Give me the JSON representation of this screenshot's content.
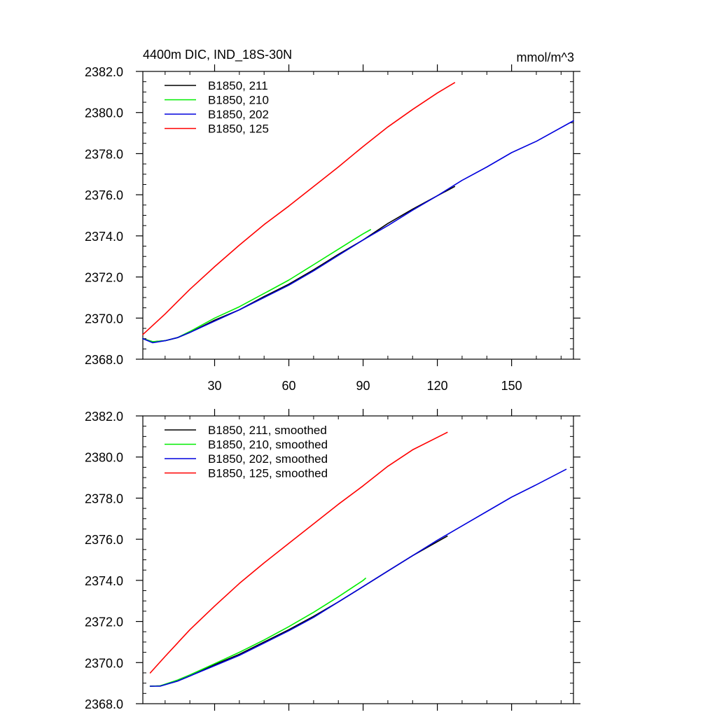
{
  "figure": {
    "title_left": "4400m DIC, IND_18S-30N",
    "title_right": "mmol/m^3"
  },
  "chart_data": [
    {
      "type": "line",
      "title": "4400m DIC, IND_18S-30N",
      "units": "mmol/m^3",
      "xlabel": "",
      "ylabel": "",
      "xlim": [
        1,
        175
      ],
      "ylim": [
        2368.0,
        2382.0
      ],
      "xticks": [
        30,
        60,
        90,
        120,
        150
      ],
      "xtick_labels": [
        "30",
        "60",
        "90",
        "120",
        "150"
      ],
      "yticks": [
        2368.0,
        2370.0,
        2372.0,
        2374.0,
        2376.0,
        2378.0,
        2380.0,
        2382.0
      ],
      "ytick_labels": [
        "2368.0",
        "2370.0",
        "2372.0",
        "2374.0",
        "2376.0",
        "2378.0",
        "2380.0",
        "2382.0"
      ],
      "grid": false,
      "legend": "top-left",
      "series": [
        {
          "name": "B1850, 211",
          "color": "#000000",
          "x": [
            1,
            5,
            10,
            15,
            20,
            30,
            40,
            50,
            60,
            70,
            80,
            90,
            100,
            110,
            120,
            127
          ],
          "y": [
            2369.0,
            2368.85,
            2368.9,
            2369.05,
            2369.3,
            2369.9,
            2370.4,
            2371.05,
            2371.65,
            2372.35,
            2373.1,
            2373.8,
            2374.6,
            2375.3,
            2375.95,
            2376.4
          ]
        },
        {
          "name": "B1850, 210",
          "color": "#00ee00",
          "x": [
            1,
            5,
            10,
            15,
            20,
            30,
            40,
            50,
            60,
            70,
            80,
            90,
            93
          ],
          "y": [
            2369.0,
            2368.85,
            2368.9,
            2369.05,
            2369.35,
            2370.0,
            2370.55,
            2371.2,
            2371.85,
            2372.6,
            2373.35,
            2374.1,
            2374.3
          ]
        },
        {
          "name": "B1850, 202",
          "color": "#0000dd",
          "x": [
            1,
            5,
            10,
            15,
            20,
            30,
            40,
            50,
            60,
            70,
            80,
            90,
            100,
            110,
            120,
            130,
            140,
            150,
            160,
            175
          ],
          "y": [
            2369.0,
            2368.8,
            2368.9,
            2369.05,
            2369.3,
            2369.85,
            2370.4,
            2371.0,
            2371.6,
            2372.3,
            2373.05,
            2373.8,
            2374.5,
            2375.25,
            2375.95,
            2376.7,
            2377.35,
            2378.05,
            2378.6,
            2379.6
          ]
        },
        {
          "name": "B1850, 125",
          "color": "#ff0000",
          "x": [
            1,
            10,
            20,
            30,
            40,
            50,
            60,
            70,
            80,
            90,
            100,
            110,
            120,
            127
          ],
          "y": [
            2369.2,
            2370.2,
            2371.4,
            2372.5,
            2373.55,
            2374.55,
            2375.45,
            2376.4,
            2377.35,
            2378.35,
            2379.3,
            2380.15,
            2380.95,
            2381.45
          ]
        }
      ]
    },
    {
      "type": "line",
      "title": "",
      "xlabel": "",
      "ylabel": "",
      "xlim": [
        1,
        175
      ],
      "ylim": [
        2368.0,
        2382.0
      ],
      "xticks": [
        30,
        60,
        90,
        120,
        150
      ],
      "xtick_labels": [],
      "yticks": [
        2368.0,
        2370.0,
        2372.0,
        2374.0,
        2376.0,
        2378.0,
        2380.0,
        2382.0
      ],
      "ytick_labels": [
        "2368.0",
        "2370.0",
        "2372.0",
        "2374.0",
        "2376.0",
        "2378.0",
        "2380.0",
        "2382.0"
      ],
      "grid": false,
      "legend": "top-left",
      "series": [
        {
          "name": "B1850, 211, smoothed",
          "color": "#000000",
          "x": [
            4,
            8,
            15,
            20,
            30,
            40,
            50,
            60,
            70,
            80,
            90,
            100,
            110,
            124
          ],
          "y": [
            2368.85,
            2368.87,
            2369.1,
            2369.35,
            2369.9,
            2370.4,
            2371.0,
            2371.6,
            2372.25,
            2372.95,
            2373.7,
            2374.45,
            2375.2,
            2376.15
          ]
        },
        {
          "name": "B1850, 210, smoothed",
          "color": "#00ee00",
          "x": [
            4,
            8,
            15,
            20,
            30,
            40,
            50,
            60,
            70,
            80,
            90,
            91
          ],
          "y": [
            2368.85,
            2368.87,
            2369.15,
            2369.4,
            2369.95,
            2370.5,
            2371.1,
            2371.75,
            2372.45,
            2373.2,
            2374.0,
            2374.1
          ]
        },
        {
          "name": "B1850, 202, smoothed",
          "color": "#0000dd",
          "x": [
            4,
            8,
            15,
            20,
            30,
            40,
            50,
            60,
            70,
            80,
            90,
            100,
            110,
            120,
            130,
            140,
            150,
            160,
            172
          ],
          "y": [
            2368.85,
            2368.85,
            2369.1,
            2369.35,
            2369.85,
            2370.35,
            2370.95,
            2371.55,
            2372.2,
            2372.95,
            2373.7,
            2374.45,
            2375.2,
            2375.95,
            2376.65,
            2377.35,
            2378.05,
            2378.65,
            2379.4
          ]
        },
        {
          "name": "B1850, 125, smoothed",
          "color": "#ff0000",
          "x": [
            4,
            10,
            20,
            30,
            40,
            50,
            60,
            70,
            80,
            90,
            100,
            110,
            124
          ],
          "y": [
            2369.5,
            2370.3,
            2371.6,
            2372.75,
            2373.85,
            2374.85,
            2375.8,
            2376.75,
            2377.7,
            2378.6,
            2379.55,
            2380.35,
            2381.2
          ]
        }
      ]
    }
  ]
}
